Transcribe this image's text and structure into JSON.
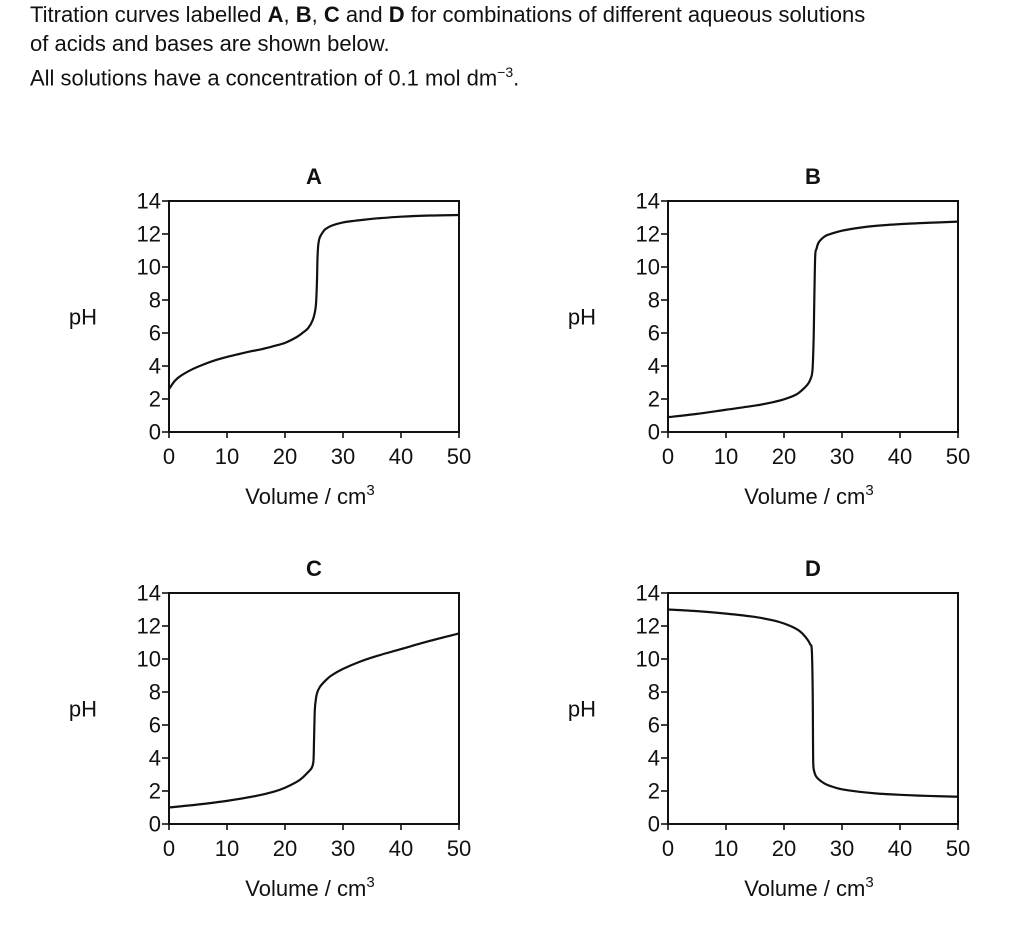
{
  "intro": {
    "line1_pre": "Titration curves labelled ",
    "line1_a": "A",
    "line1_sep1": ", ",
    "line1_b": "B",
    "line1_sep2": ", ",
    "line1_c": "C",
    "line1_and": " and ",
    "line1_d": "D",
    "line1_post": " for combinations of different aqueous solutions",
    "line2": "of acids and bases are shown below.",
    "line3_pre": "All solutions have a concentration of 0.1 mol dm",
    "line3_sup": "−3",
    "line3_post": "."
  },
  "chart_data": [
    {
      "type": "line",
      "title": "A",
      "xlabel": "Volume / cm",
      "xlabel_sup": "3",
      "ylabel": "pH",
      "xlim": [
        0,
        50
      ],
      "ylim": [
        0,
        14
      ],
      "xticks": [
        0,
        10,
        20,
        30,
        40,
        50
      ],
      "yticks": [
        0,
        2,
        4,
        6,
        8,
        10,
        12,
        14
      ],
      "grid": false,
      "series": [
        {
          "x": [
            0,
            1,
            2,
            4,
            6,
            8,
            10,
            12,
            14,
            16,
            18,
            20,
            22,
            23,
            24,
            24.8,
            25.3,
            25.5,
            25.6,
            25.7,
            25.8,
            26,
            26.5,
            27,
            28,
            30,
            32,
            34,
            36,
            40,
            45,
            50
          ],
          "y": [
            2.6,
            3.1,
            3.4,
            3.8,
            4.1,
            4.35,
            4.55,
            4.72,
            4.88,
            5.02,
            5.2,
            5.4,
            5.75,
            6.0,
            6.3,
            6.8,
            7.6,
            9.0,
            10.5,
            11.2,
            11.5,
            11.8,
            12.1,
            12.3,
            12.5,
            12.7,
            12.8,
            12.88,
            12.95,
            13.05,
            13.12,
            13.15
          ]
        }
      ]
    },
    {
      "type": "line",
      "title": "B",
      "xlabel": "Volume / cm",
      "xlabel_sup": "3",
      "ylabel": "pH",
      "xlim": [
        0,
        50
      ],
      "ylim": [
        0,
        14
      ],
      "xticks": [
        0,
        10,
        20,
        30,
        40,
        50
      ],
      "yticks": [
        0,
        2,
        4,
        6,
        8,
        10,
        12,
        14
      ],
      "grid": false,
      "series": [
        {
          "x": [
            0,
            5,
            10,
            15,
            18,
            20,
            22,
            23,
            24,
            24.5,
            24.9,
            25.1,
            25.2,
            25.3,
            25.4,
            25.6,
            26,
            27,
            28,
            30,
            33,
            36,
            40,
            45,
            50
          ],
          "y": [
            0.9,
            1.1,
            1.35,
            1.6,
            1.8,
            1.98,
            2.25,
            2.5,
            2.85,
            3.15,
            3.7,
            5.5,
            7.5,
            9.5,
            10.8,
            11.1,
            11.5,
            11.85,
            12.0,
            12.2,
            12.38,
            12.5,
            12.6,
            12.68,
            12.75
          ]
        }
      ]
    },
    {
      "type": "line",
      "title": "C",
      "xlabel": "Volume / cm",
      "xlabel_sup": "3",
      "ylabel": "pH",
      "xlim": [
        0,
        50
      ],
      "ylim": [
        0,
        14
      ],
      "xticks": [
        0,
        10,
        20,
        30,
        40,
        50
      ],
      "yticks": [
        0,
        2,
        4,
        6,
        8,
        10,
        12,
        14
      ],
      "grid": false,
      "series": [
        {
          "x": [
            0,
            5,
            10,
            15,
            18,
            20,
            22,
            23,
            24,
            24.6,
            24.9,
            25.0,
            25.1,
            25.2,
            25.5,
            26,
            27,
            28,
            30,
            33,
            36,
            40,
            45,
            50
          ],
          "y": [
            1.0,
            1.18,
            1.4,
            1.7,
            1.95,
            2.2,
            2.55,
            2.8,
            3.15,
            3.4,
            3.8,
            5.0,
            6.5,
            7.2,
            7.9,
            8.3,
            8.7,
            9.0,
            9.4,
            9.85,
            10.2,
            10.6,
            11.1,
            11.55
          ]
        }
      ]
    },
    {
      "type": "line",
      "title": "D",
      "xlabel": "Volume / cm",
      "xlabel_sup": "3",
      "ylabel": "pH",
      "xlim": [
        0,
        50
      ],
      "ylim": [
        0,
        14
      ],
      "xticks": [
        0,
        10,
        20,
        30,
        40,
        50
      ],
      "yticks": [
        0,
        2,
        4,
        6,
        8,
        10,
        12,
        14
      ],
      "grid": false,
      "series": [
        {
          "x": [
            0,
            5,
            10,
            15,
            18,
            20,
            22,
            23,
            24,
            24.5,
            24.8,
            24.95,
            25.0,
            25.05,
            25.2,
            25.5,
            26,
            27,
            28,
            30,
            33,
            36,
            40,
            45,
            50
          ],
          "y": [
            13.0,
            12.9,
            12.75,
            12.55,
            12.35,
            12.15,
            11.85,
            11.6,
            11.2,
            10.9,
            10.5,
            8.0,
            5.0,
            3.6,
            3.2,
            2.9,
            2.7,
            2.45,
            2.3,
            2.1,
            1.95,
            1.85,
            1.77,
            1.7,
            1.65
          ]
        }
      ]
    }
  ]
}
